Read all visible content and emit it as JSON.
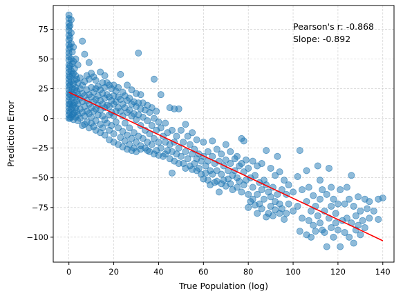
{
  "chart_data": {
    "type": "scatter",
    "title": "",
    "xlabel": "True Population (log)",
    "ylabel": "Prediction Error",
    "xlim": [
      -7,
      145
    ],
    "ylim": [
      -121,
      95
    ],
    "xticks": [
      0,
      20,
      40,
      60,
      80,
      100,
      120,
      140
    ],
    "yticks": [
      -100,
      -75,
      -50,
      -25,
      0,
      25,
      50,
      75
    ],
    "grid": true,
    "point_color": "#1f77b4",
    "line_color": "#ff0000",
    "fit_line": {
      "x": [
        0,
        140
      ],
      "y": [
        22,
        -103
      ]
    },
    "annotations": [
      "Pearson's r: -0.868",
      "Slope: -0.892"
    ],
    "points": [
      [
        0,
        87
      ],
      [
        0,
        84
      ],
      [
        0,
        80
      ],
      [
        0,
        77
      ],
      [
        0,
        74
      ],
      [
        0,
        70
      ],
      [
        0,
        66
      ],
      [
        0,
        62
      ],
      [
        0,
        58
      ],
      [
        0,
        55
      ],
      [
        0,
        52
      ],
      [
        0,
        49
      ],
      [
        0,
        45
      ],
      [
        0,
        42
      ],
      [
        0,
        39
      ],
      [
        0,
        36
      ],
      [
        0,
        33
      ],
      [
        0,
        30
      ],
      [
        0,
        27
      ],
      [
        0,
        24
      ],
      [
        0,
        21
      ],
      [
        0,
        18
      ],
      [
        0,
        15
      ],
      [
        0,
        12
      ],
      [
        0,
        9
      ],
      [
        0,
        6
      ],
      [
        0,
        3
      ],
      [
        0,
        0
      ],
      [
        0.5,
        78
      ],
      [
        0.5,
        68
      ],
      [
        0.5,
        60
      ],
      [
        0.5,
        44
      ],
      [
        0.5,
        35
      ],
      [
        0.5,
        28
      ],
      [
        0.5,
        20
      ],
      [
        0.5,
        12
      ],
      [
        0.5,
        5
      ],
      [
        0.5,
        0
      ],
      [
        1,
        83
      ],
      [
        1,
        72
      ],
      [
        1,
        63
      ],
      [
        1,
        50
      ],
      [
        1,
        40
      ],
      [
        1,
        31
      ],
      [
        1,
        22
      ],
      [
        1,
        14
      ],
      [
        1,
        8
      ],
      [
        1,
        1
      ],
      [
        1.5,
        56
      ],
      [
        1.5,
        46
      ],
      [
        1.5,
        37
      ],
      [
        1.5,
        25
      ],
      [
        1.5,
        17
      ],
      [
        1.5,
        10
      ],
      [
        1.5,
        3
      ],
      [
        2,
        60
      ],
      [
        2,
        48
      ],
      [
        2,
        38
      ],
      [
        2,
        29
      ],
      [
        2,
        20
      ],
      [
        2,
        11
      ],
      [
        2,
        4
      ],
      [
        2,
        -1
      ],
      [
        2.5,
        42
      ],
      [
        2.5,
        32
      ],
      [
        2.5,
        24
      ],
      [
        2.5,
        13
      ],
      [
        2.5,
        5
      ],
      [
        3,
        50
      ],
      [
        3,
        36
      ],
      [
        3,
        26
      ],
      [
        3,
        18
      ],
      [
        3,
        9
      ],
      [
        3,
        1
      ],
      [
        3.5,
        33
      ],
      [
        3.5,
        23
      ],
      [
        3.5,
        15
      ],
      [
        3.5,
        6
      ],
      [
        4,
        45
      ],
      [
        4,
        30
      ],
      [
        4,
        20
      ],
      [
        4,
        12
      ],
      [
        4,
        3
      ],
      [
        4,
        -2
      ],
      [
        5,
        34
      ],
      [
        5,
        25
      ],
      [
        5,
        17
      ],
      [
        5,
        8
      ],
      [
        5,
        0
      ],
      [
        6,
        65
      ],
      [
        6,
        28
      ],
      [
        6,
        21
      ],
      [
        6,
        14
      ],
      [
        6,
        5
      ],
      [
        6,
        -6
      ],
      [
        7,
        54
      ],
      [
        7,
        31
      ],
      [
        7,
        19
      ],
      [
        7,
        10
      ],
      [
        7,
        2
      ],
      [
        7,
        -5
      ],
      [
        8,
        36
      ],
      [
        8,
        24
      ],
      [
        8,
        15
      ],
      [
        8,
        6
      ],
      [
        8,
        -3
      ],
      [
        9,
        47
      ],
      [
        9,
        33
      ],
      [
        9,
        20
      ],
      [
        9,
        12
      ],
      [
        9,
        4
      ],
      [
        9,
        -8
      ],
      [
        10,
        38
      ],
      [
        10,
        26
      ],
      [
        10,
        18
      ],
      [
        10,
        9
      ],
      [
        10,
        1
      ],
      [
        10,
        -4
      ],
      [
        11,
        35
      ],
      [
        11,
        22
      ],
      [
        11,
        14
      ],
      [
        11,
        6
      ],
      [
        11,
        -7
      ],
      [
        12,
        32
      ],
      [
        12,
        25
      ],
      [
        12,
        16
      ],
      [
        12,
        8
      ],
      [
        12,
        -2
      ],
      [
        12,
        -10
      ],
      [
        13,
        27
      ],
      [
        13,
        19
      ],
      [
        13,
        11
      ],
      [
        13,
        3
      ],
      [
        14,
        39
      ],
      [
        14,
        24
      ],
      [
        14,
        15
      ],
      [
        14,
        7
      ],
      [
        14,
        -5
      ],
      [
        14,
        -12
      ],
      [
        15,
        30
      ],
      [
        15,
        21
      ],
      [
        15,
        12
      ],
      [
        15,
        2
      ],
      [
        15,
        -8
      ],
      [
        16,
        36
      ],
      [
        16,
        26
      ],
      [
        16,
        17
      ],
      [
        16,
        9
      ],
      [
        16,
        -1
      ],
      [
        16,
        -14
      ],
      [
        17,
        30
      ],
      [
        17,
        20
      ],
      [
        17,
        11
      ],
      [
        17,
        -4
      ],
      [
        18,
        28
      ],
      [
        18,
        18
      ],
      [
        18,
        10
      ],
      [
        18,
        3
      ],
      [
        18,
        -10
      ],
      [
        18,
        -18
      ],
      [
        19,
        25
      ],
      [
        19,
        15
      ],
      [
        19,
        5
      ],
      [
        19,
        -6
      ],
      [
        20,
        28
      ],
      [
        20,
        19
      ],
      [
        20,
        12
      ],
      [
        20,
        2
      ],
      [
        20,
        -13
      ],
      [
        20,
        -20
      ],
      [
        21,
        23
      ],
      [
        21,
        14
      ],
      [
        21,
        6
      ],
      [
        21,
        -3
      ],
      [
        22,
        26
      ],
      [
        22,
        18
      ],
      [
        22,
        9
      ],
      [
        22,
        -8
      ],
      [
        22,
        -22
      ],
      [
        23,
        37
      ],
      [
        23,
        16
      ],
      [
        23,
        6
      ],
      [
        23,
        -16
      ],
      [
        24,
        22
      ],
      [
        24,
        12
      ],
      [
        24,
        2
      ],
      [
        24,
        -11
      ],
      [
        24,
        -24
      ],
      [
        25,
        19
      ],
      [
        25,
        9
      ],
      [
        25,
        -4
      ],
      [
        25,
        -19
      ],
      [
        26,
        28
      ],
      [
        26,
        15
      ],
      [
        26,
        5
      ],
      [
        26,
        -14
      ],
      [
        26,
        -26
      ],
      [
        27,
        17
      ],
      [
        27,
        7
      ],
      [
        27,
        -8
      ],
      [
        27,
        -22
      ],
      [
        28,
        24
      ],
      [
        28,
        12
      ],
      [
        28,
        2
      ],
      [
        28,
        -17
      ],
      [
        28,
        -27
      ],
      [
        29,
        14
      ],
      [
        29,
        4
      ],
      [
        29,
        -12
      ],
      [
        29,
        -25
      ],
      [
        30,
        21
      ],
      [
        30,
        10
      ],
      [
        30,
        -1
      ],
      [
        30,
        -20
      ],
      [
        30,
        -28
      ],
      [
        31,
        55
      ],
      [
        31,
        13
      ],
      [
        31,
        3
      ],
      [
        31,
        -15
      ],
      [
        32,
        20
      ],
      [
        32,
        8
      ],
      [
        32,
        -6
      ],
      [
        32,
        -23
      ],
      [
        32,
        -26
      ],
      [
        33,
        13
      ],
      [
        33,
        1
      ],
      [
        33,
        -17
      ],
      [
        34,
        7
      ],
      [
        34,
        -10
      ],
      [
        34,
        -25
      ],
      [
        35,
        11
      ],
      [
        35,
        -2
      ],
      [
        35,
        -20
      ],
      [
        35,
        -27
      ],
      [
        36,
        5
      ],
      [
        36,
        -13
      ],
      [
        36,
        -28
      ],
      [
        37,
        9
      ],
      [
        37,
        -6
      ],
      [
        37,
        -22
      ],
      [
        38,
        33
      ],
      [
        38,
        0
      ],
      [
        38,
        -17
      ],
      [
        38,
        -30
      ],
      [
        39,
        6
      ],
      [
        39,
        -10
      ],
      [
        39,
        -27
      ],
      [
        40,
        -3
      ],
      [
        40,
        -20
      ],
      [
        40,
        -31
      ],
      [
        41,
        20
      ],
      [
        41,
        -8
      ],
      [
        41,
        -25
      ],
      [
        42,
        -15
      ],
      [
        42,
        -32
      ],
      [
        43,
        -4
      ],
      [
        43,
        -20
      ],
      [
        43,
        -30
      ],
      [
        44,
        -12
      ],
      [
        44,
        -27
      ],
      [
        45,
        9
      ],
      [
        45,
        -22
      ],
      [
        45,
        -34
      ],
      [
        46,
        -10
      ],
      [
        46,
        -28
      ],
      [
        46,
        -46
      ],
      [
        47,
        8
      ],
      [
        47,
        -20
      ],
      [
        47,
        -36
      ],
      [
        48,
        -15
      ],
      [
        48,
        -30
      ],
      [
        49,
        8
      ],
      [
        49,
        -25
      ],
      [
        49,
        -38
      ],
      [
        50,
        -10
      ],
      [
        50,
        -32
      ],
      [
        51,
        -20
      ],
      [
        51,
        -38
      ],
      [
        52,
        -5
      ],
      [
        52,
        -28
      ],
      [
        52,
        -42
      ],
      [
        53,
        -15
      ],
      [
        53,
        -34
      ],
      [
        54,
        -22
      ],
      [
        54,
        -40
      ],
      [
        55,
        -12
      ],
      [
        55,
        -30
      ],
      [
        55,
        -43
      ],
      [
        56,
        -26
      ],
      [
        56,
        -38
      ],
      [
        57,
        -18
      ],
      [
        57,
        -34
      ],
      [
        57,
        -44
      ],
      [
        58,
        -30
      ],
      [
        58,
        -42
      ],
      [
        59,
        -36
      ],
      [
        59,
        -47
      ],
      [
        60,
        -20
      ],
      [
        60,
        -32
      ],
      [
        60,
        -51
      ],
      [
        61,
        -40
      ],
      [
        61,
        -46
      ],
      [
        62,
        -28
      ],
      [
        62,
        -36
      ],
      [
        62,
        -52
      ],
      [
        63,
        -44
      ],
      [
        63,
        -56
      ],
      [
        64,
        -19
      ],
      [
        64,
        -32
      ],
      [
        64,
        -47
      ],
      [
        65,
        -38
      ],
      [
        65,
        -54
      ],
      [
        66,
        -26
      ],
      [
        66,
        -44
      ],
      [
        66,
        -53
      ],
      [
        67,
        -36
      ],
      [
        67,
        -62
      ],
      [
        68,
        -30
      ],
      [
        68,
        -47
      ],
      [
        68,
        -55
      ],
      [
        69,
        -40
      ],
      [
        69,
        -52
      ],
      [
        70,
        -22
      ],
      [
        70,
        -35
      ],
      [
        70,
        -57
      ],
      [
        71,
        -44
      ],
      [
        71,
        -51
      ],
      [
        72,
        -28
      ],
      [
        72,
        -38
      ],
      [
        72,
        -55
      ],
      [
        73,
        -48
      ],
      [
        73,
        -60
      ],
      [
        74,
        -34
      ],
      [
        74,
        -44
      ],
      [
        75,
        -32
      ],
      [
        75,
        -50
      ],
      [
        75,
        -58
      ],
      [
        76,
        -40
      ],
      [
        76,
        -53
      ],
      [
        77,
        -17
      ],
      [
        77,
        -38
      ],
      [
        77,
        -62
      ],
      [
        78,
        -19
      ],
      [
        78,
        -45
      ],
      [
        78,
        -56
      ],
      [
        79,
        -35
      ],
      [
        79,
        -52
      ],
      [
        80,
        -42
      ],
      [
        80,
        -64
      ],
      [
        80,
        -75
      ],
      [
        81,
        -50
      ],
      [
        81,
        -70
      ],
      [
        82,
        -36
      ],
      [
        82,
        -58
      ],
      [
        82,
        -68
      ],
      [
        83,
        -48
      ],
      [
        83,
        -73
      ],
      [
        84,
        -40
      ],
      [
        84,
        -64
      ],
      [
        84,
        -80
      ],
      [
        85,
        -54
      ],
      [
        85,
        -72
      ],
      [
        86,
        -38
      ],
      [
        86,
        -60
      ],
      [
        86,
        -76
      ],
      [
        87,
        -52
      ],
      [
        87,
        -68
      ],
      [
        88,
        -27
      ],
      [
        88,
        -56
      ],
      [
        88,
        -83
      ],
      [
        89,
        -62
      ],
      [
        89,
        -80
      ],
      [
        90,
        -42
      ],
      [
        90,
        -66
      ],
      [
        90,
        -74
      ],
      [
        91,
        -58
      ],
      [
        91,
        -82
      ],
      [
        92,
        -48
      ],
      [
        92,
        -70
      ],
      [
        92,
        -77
      ],
      [
        93,
        -32
      ],
      [
        93,
        -64
      ],
      [
        94,
        -45
      ],
      [
        94,
        -72
      ],
      [
        94,
        -80
      ],
      [
        95,
        -60
      ],
      [
        95,
        -76
      ],
      [
        96,
        -52
      ],
      [
        96,
        -85
      ],
      [
        97,
        -64
      ],
      [
        97,
        -80
      ],
      [
        98,
        -56
      ],
      [
        98,
        -72
      ],
      [
        100,
        -62
      ],
      [
        100,
        -78
      ],
      [
        102,
        -49
      ],
      [
        102,
        -74
      ],
      [
        103,
        -27
      ],
      [
        103,
        -95
      ],
      [
        104,
        -60
      ],
      [
        104,
        -84
      ],
      [
        106,
        -44
      ],
      [
        106,
        -70
      ],
      [
        106,
        -98
      ],
      [
        107,
        -58
      ],
      [
        107,
        -86
      ],
      [
        108,
        -78
      ],
      [
        108,
        -100
      ],
      [
        109,
        -65
      ],
      [
        109,
        -90
      ],
      [
        110,
        -74
      ],
      [
        110,
        -95
      ],
      [
        111,
        -40
      ],
      [
        111,
        -82
      ],
      [
        112,
        -52
      ],
      [
        112,
        -68
      ],
      [
        112,
        -88
      ],
      [
        113,
        -60
      ],
      [
        113,
        -94
      ],
      [
        114,
        -78
      ],
      [
        114,
        -96
      ],
      [
        115,
        -64
      ],
      [
        115,
        -108
      ],
      [
        116,
        -42
      ],
      [
        116,
        -84
      ],
      [
        117,
        -58
      ],
      [
        117,
        -74
      ],
      [
        117,
        -92
      ],
      [
        118,
        -68
      ],
      [
        118,
        -100
      ],
      [
        119,
        -80
      ],
      [
        119,
        -88
      ],
      [
        120,
        -72
      ],
      [
        120,
        -94
      ],
      [
        121,
        -60
      ],
      [
        121,
        -108
      ],
      [
        122,
        -86
      ],
      [
        123,
        -72
      ],
      [
        123,
        -96
      ],
      [
        124,
        -58
      ],
      [
        124,
        -84
      ],
      [
        125,
        -68
      ],
      [
        125,
        -100
      ],
      [
        126,
        -48
      ],
      [
        126,
        -88
      ],
      [
        127,
        -74
      ],
      [
        127,
        -105
      ],
      [
        128,
        -82
      ],
      [
        128,
        -94
      ],
      [
        129,
        -66
      ],
      [
        129,
        -90
      ],
      [
        130,
        -78
      ],
      [
        130,
        -98
      ],
      [
        131,
        -86
      ],
      [
        132,
        -68
      ],
      [
        132,
        -92
      ],
      [
        133,
        -76
      ],
      [
        134,
        -70
      ],
      [
        134,
        -84
      ],
      [
        136,
        -78
      ],
      [
        138,
        -68
      ],
      [
        138,
        -85
      ],
      [
        140,
        -67
      ]
    ]
  }
}
